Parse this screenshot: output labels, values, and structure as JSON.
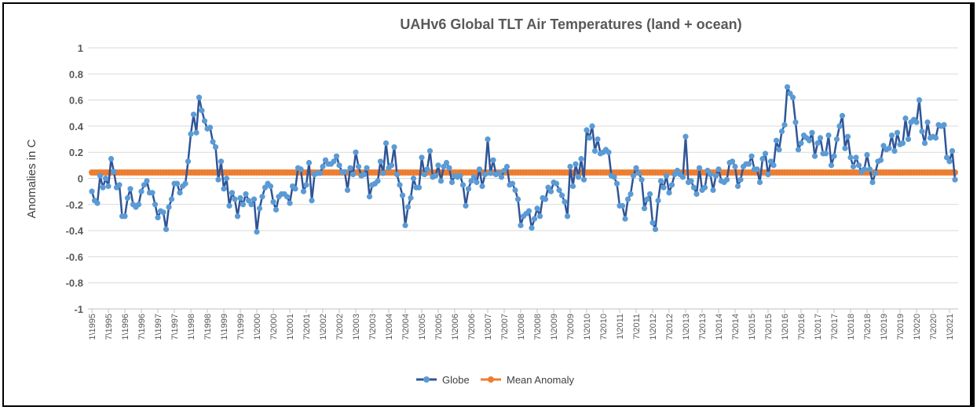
{
  "chart_data": {
    "type": "line",
    "title": "UAHv6 Global TLT Air Temperatures (land + ocean)",
    "xlabel": "",
    "ylabel": "Anomalies in C",
    "ylim": [
      -1,
      1
    ],
    "y_ticks": [
      "1",
      "0.8",
      "0.6",
      "0.4",
      "0.2",
      "0",
      "-0.2",
      "-0.4",
      "-0.6",
      "-0.8",
      "-1"
    ],
    "grid": true,
    "legend": "bottom",
    "x_tick_labels": [
      "1\\1995",
      "7\\1995",
      "1\\1996",
      "7\\1996",
      "1\\1997",
      "7\\1997",
      "1\\1998",
      "7\\1998",
      "1\\1999",
      "7\\1999",
      "1\\2000",
      "7\\2000",
      "1\\2001",
      "7\\2001",
      "1\\2002",
      "7\\2002",
      "1\\2003",
      "7\\2003",
      "1\\2004",
      "7\\2004",
      "1\\2005",
      "7\\2005",
      "1\\2006",
      "7\\2006",
      "1\\2007",
      "7\\2007",
      "1\\2008",
      "7\\2008",
      "1\\2009",
      "7\\2009",
      "1\\2010",
      "7\\2010",
      "1\\2011",
      "7\\2011",
      "1\\2012",
      "7\\2012",
      "1\\2013",
      "7\\2013",
      "1\\2014",
      "7\\2014",
      "1\\2015",
      "7\\2015",
      "1\\2016",
      "7\\2016",
      "1\\2017",
      "7\\2017",
      "1\\2018",
      "7\\2018",
      "1\\2019",
      "7\\2019",
      "1\\2020",
      "7\\2020",
      "1\\2021"
    ],
    "series": [
      {
        "name": "Globe",
        "line_color": "#2F5597",
        "marker_color": "#5B9BD5",
        "values": [
          -0.1,
          -0.17,
          -0.19,
          0.02,
          -0.07,
          0.0,
          -0.06,
          0.15,
          0.05,
          -0.07,
          -0.05,
          -0.29,
          -0.29,
          -0.15,
          -0.08,
          -0.2,
          -0.22,
          -0.2,
          -0.1,
          -0.05,
          -0.02,
          -0.11,
          -0.11,
          -0.2,
          -0.3,
          -0.25,
          -0.26,
          -0.39,
          -0.22,
          -0.16,
          -0.04,
          -0.04,
          -0.11,
          -0.06,
          -0.04,
          0.13,
          0.34,
          0.49,
          0.35,
          0.62,
          0.52,
          0.44,
          0.38,
          0.39,
          0.28,
          0.24,
          -0.01,
          0.13,
          -0.08,
          0.0,
          -0.21,
          -0.11,
          -0.16,
          -0.29,
          -0.15,
          -0.2,
          -0.12,
          -0.17,
          -0.2,
          -0.16,
          -0.41,
          -0.23,
          -0.14,
          -0.07,
          -0.04,
          -0.06,
          -0.18,
          -0.24,
          -0.14,
          -0.12,
          -0.12,
          -0.14,
          -0.19,
          -0.06,
          -0.08,
          0.08,
          0.07,
          -0.1,
          -0.05,
          0.12,
          -0.17,
          0.03,
          0.04,
          0.04,
          0.09,
          0.14,
          0.11,
          0.11,
          0.13,
          0.17,
          0.1,
          0.05,
          0.05,
          -0.09,
          0.08,
          0.03,
          0.2,
          0.09,
          0.02,
          0.03,
          0.08,
          -0.14,
          -0.05,
          -0.04,
          -0.02,
          0.13,
          0.04,
          0.27,
          0.08,
          0.1,
          0.24,
          0.03,
          -0.05,
          -0.13,
          -0.36,
          -0.22,
          -0.15,
          0.0,
          -0.07,
          -0.07,
          0.16,
          0.03,
          0.07,
          0.21,
          0.01,
          0.02,
          0.1,
          -0.02,
          0.09,
          0.12,
          0.08,
          -0.03,
          0.02,
          0.01,
          0.02,
          -0.05,
          -0.21,
          -0.08,
          -0.02,
          0.01,
          -0.03,
          0.07,
          -0.06,
          0.03,
          0.3,
          0.04,
          0.14,
          0.03,
          0.04,
          0.01,
          0.06,
          0.09,
          -0.05,
          -0.04,
          -0.09,
          -0.16,
          -0.36,
          -0.29,
          -0.27,
          -0.25,
          -0.38,
          -0.31,
          -0.23,
          -0.29,
          -0.15,
          -0.16,
          -0.07,
          -0.1,
          -0.03,
          -0.04,
          -0.09,
          -0.13,
          -0.18,
          -0.29,
          0.09,
          -0.06,
          0.11,
          0.01,
          0.15,
          -0.01,
          0.37,
          0.31,
          0.4,
          0.21,
          0.3,
          0.19,
          0.2,
          0.22,
          0.2,
          0.02,
          0.01,
          -0.04,
          -0.21,
          -0.21,
          -0.31,
          -0.16,
          -0.12,
          0.02,
          0.08,
          0.04,
          -0.01,
          -0.23,
          -0.16,
          -0.12,
          -0.34,
          -0.39,
          -0.17,
          -0.02,
          -0.07,
          0.02,
          -0.11,
          -0.05,
          0.03,
          0.06,
          0.03,
          0.01,
          0.32,
          -0.03,
          -0.02,
          -0.07,
          -0.12,
          0.08,
          -0.09,
          -0.07,
          0.06,
          0.03,
          -0.09,
          0.02,
          0.07,
          -0.02,
          -0.03,
          -0.01,
          0.12,
          0.13,
          0.09,
          -0.06,
          -0.01,
          0.09,
          0.11,
          0.11,
          0.17,
          0.07,
          0.07,
          -0.03,
          0.15,
          0.19,
          0.03,
          0.13,
          0.1,
          0.29,
          0.22,
          0.36,
          0.41,
          0.7,
          0.65,
          0.62,
          0.43,
          0.22,
          0.27,
          0.33,
          0.31,
          0.29,
          0.35,
          0.17,
          0.27,
          0.31,
          0.19,
          0.19,
          0.33,
          0.1,
          0.17,
          0.3,
          0.4,
          0.48,
          0.23,
          0.32,
          0.16,
          0.09,
          0.16,
          0.1,
          0.05,
          0.07,
          0.18,
          0.07,
          -0.03,
          0.04,
          0.13,
          0.14,
          0.25,
          0.22,
          0.23,
          0.33,
          0.21,
          0.35,
          0.26,
          0.27,
          0.46,
          0.3,
          0.43,
          0.45,
          0.43,
          0.6,
          0.36,
          0.27,
          0.43,
          0.31,
          0.32,
          0.31,
          0.41,
          0.4,
          0.41,
          0.16,
          0.13,
          0.21,
          -0.01
        ]
      },
      {
        "name": "Mean Anomaly",
        "color": "#ED7D31",
        "value": 0.045
      }
    ]
  }
}
